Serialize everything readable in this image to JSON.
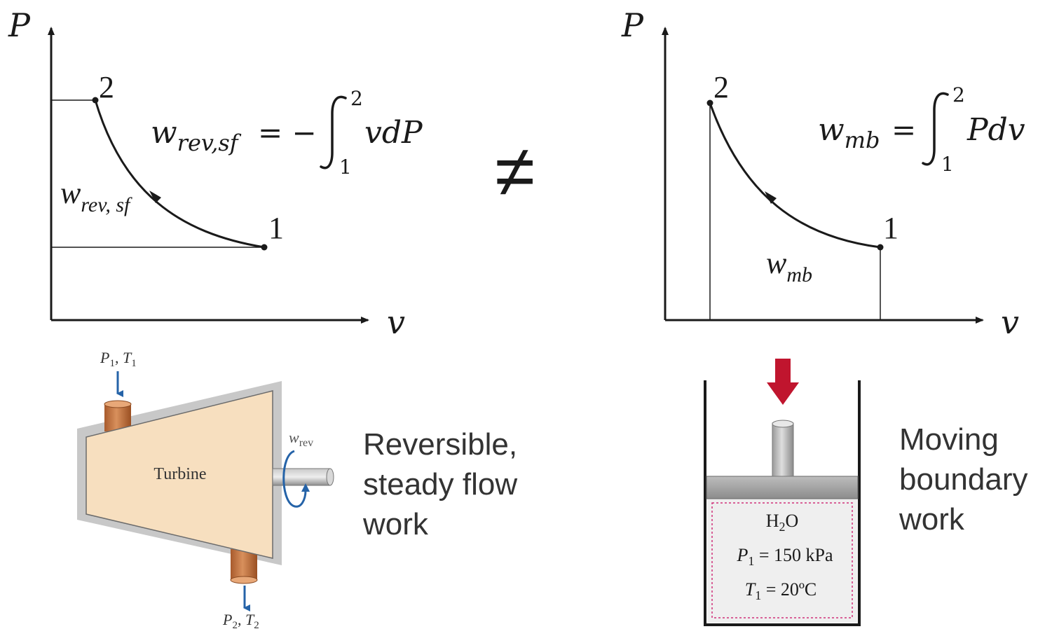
{
  "colors": {
    "ink": "#1a1a1a",
    "caption": "#333333",
    "turbine_body": "#f7dfbf",
    "turbine_shadow": "#c8c8c8",
    "pipe": "#c97a46",
    "flow_arrow": "#2563a8",
    "piston_arrow": "#c0152e",
    "gas_boundary": "#d0307a",
    "gas_fill": "#efefef",
    "piston": "#a8a8a8"
  },
  "left_diagram": {
    "y_axis_label": "P",
    "x_axis_label": "v",
    "state_2_label": "2",
    "state_1_label": "1",
    "equation": {
      "lhs_symbol": "w",
      "lhs_subscript": "rev,sf",
      "operator": "= −",
      "integral_lower": "1",
      "integral_upper": "2",
      "integrand": "vdP"
    },
    "area_label": {
      "symbol": "w",
      "subscript": "rev, sf"
    }
  },
  "right_diagram": {
    "y_axis_label": "P",
    "x_axis_label": "v",
    "state_2_label": "2",
    "state_1_label": "1",
    "equation": {
      "lhs_symbol": "w",
      "lhs_subscript": "mb",
      "operator": "=",
      "integral_lower": "1",
      "integral_upper": "2",
      "integrand": "Pdv"
    },
    "area_label": {
      "symbol": "w",
      "subscript": "mb"
    }
  },
  "not_equal_symbol": "≠",
  "turbine": {
    "name": "Turbine",
    "inlet": {
      "p": "P",
      "p_sub": "1",
      "sep": ", ",
      "t": "T",
      "t_sub": "1"
    },
    "outlet": {
      "p": "P",
      "p_sub": "2",
      "sep": ", ",
      "t": "T",
      "t_sub": "2"
    },
    "work": {
      "symbol": "w",
      "subscript": "rev"
    },
    "caption_lines": [
      "Reversible,",
      "steady flow",
      "work"
    ]
  },
  "piston_cylinder": {
    "substance": {
      "h": "H",
      "sub": "2",
      "o": "O"
    },
    "pressure": {
      "symbol": "P",
      "sub": "1",
      "value": " = 150 kPa"
    },
    "temperature": {
      "symbol": "T",
      "sub": "1",
      "value": " = 20ºC"
    },
    "caption_lines": [
      "Moving",
      "boundary",
      "work"
    ]
  }
}
